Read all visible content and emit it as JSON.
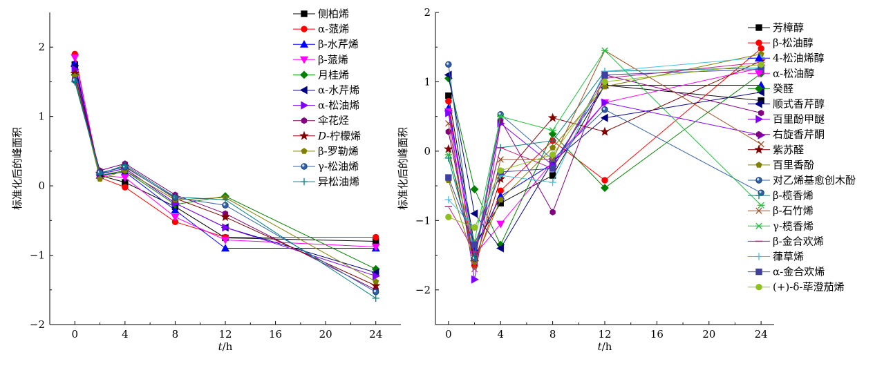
{
  "chart_data": [
    {
      "type": "line",
      "xlabel_var": "t",
      "xlabel_unit": "/h",
      "ylabel": "标准化后的峰面积",
      "xlim": [
        -2,
        26
      ],
      "ylim": [
        -2,
        2.5
      ],
      "xticks": [
        "0",
        "4",
        "8",
        "12",
        "16",
        "20",
        "24"
      ],
      "xtick_values": [
        0,
        4,
        8,
        12,
        16,
        20,
        24
      ],
      "yticks": [
        "−2",
        "−1",
        "0",
        "1",
        "2"
      ],
      "ytick_values": [
        -2,
        -1,
        0,
        1,
        2
      ],
      "x": [
        0,
        2,
        4,
        8,
        12,
        24
      ],
      "legend": "top-right",
      "series": [
        {
          "name": "侧柏烯",
          "color": "#000000",
          "marker": "square",
          "values": [
            1.75,
            0.15,
            0.05,
            -0.3,
            -0.75,
            -0.8
          ]
        },
        {
          "name": "α-蒎烯",
          "color": "#ff0000",
          "marker": "circle",
          "values": [
            1.9,
            0.12,
            -0.02,
            -0.52,
            -0.74,
            -0.74
          ]
        },
        {
          "name": "β-水芹烯",
          "color": "#0000ff",
          "marker": "triangle-up",
          "values": [
            1.77,
            0.15,
            0.2,
            -0.35,
            -0.9,
            -0.9
          ]
        },
        {
          "name": "β-蒎烯",
          "color": "#ff00ff",
          "marker": "triangle-down",
          "values": [
            1.85,
            0.15,
            0.12,
            -0.45,
            -0.78,
            -0.88
          ]
        },
        {
          "name": "月桂烯",
          "color": "#008000",
          "marker": "diamond",
          "values": [
            1.6,
            0.15,
            0.22,
            -0.27,
            -0.15,
            -1.2
          ]
        },
        {
          "name": "α-水芹烯",
          "color": "#000080",
          "marker": "triangle-left",
          "values": [
            1.72,
            0.17,
            0.25,
            -0.25,
            -0.6,
            -1.25
          ]
        },
        {
          "name": "α-松油烯",
          "color": "#8000ff",
          "marker": "triangle-right",
          "values": [
            1.68,
            0.17,
            0.25,
            -0.25,
            -0.6,
            -1.3
          ]
        },
        {
          "name": "伞花烃",
          "color": "#800080",
          "marker": "hexagon",
          "values": [
            1.55,
            0.22,
            0.32,
            -0.13,
            -0.4,
            -1.5
          ]
        },
        {
          "name": "D-柠檬烯",
          "italic_prefix": "D",
          "color": "#800000",
          "marker": "star",
          "values": [
            1.62,
            0.18,
            0.28,
            -0.18,
            -0.45,
            -1.44
          ]
        },
        {
          "name": "β-罗勒烯",
          "color": "#808000",
          "marker": "pentagon",
          "values": [
            1.58,
            0.1,
            0.22,
            -0.2,
            -0.17,
            -1.38
          ]
        },
        {
          "name": "γ-松油烯",
          "color": "#3060a8",
          "marker": "sphere",
          "values": [
            1.52,
            0.19,
            0.27,
            -0.17,
            -0.28,
            -1.53
          ]
        },
        {
          "name": "异松油烯",
          "color": "#008080",
          "marker": "plus",
          "values": [
            1.5,
            0.17,
            0.3,
            -0.16,
            -0.2,
            -1.62
          ]
        }
      ]
    },
    {
      "type": "line",
      "xlabel_var": "t",
      "xlabel_unit": "/h",
      "ylabel": "标准化后的峰面积",
      "xlim": [
        -1,
        25
      ],
      "ylim": [
        -2.5,
        2
      ],
      "xticks": [
        "0",
        "4",
        "8",
        "12",
        "16",
        "20",
        "24"
      ],
      "xtick_values": [
        0,
        4,
        8,
        12,
        16,
        20,
        24
      ],
      "yticks": [
        "−2",
        "−1",
        "0",
        "1",
        "2"
      ],
      "ytick_values": [
        -2,
        -1,
        0,
        1,
        2
      ],
      "x": [
        0,
        2,
        4,
        8,
        12,
        24
      ],
      "legend": "top-right",
      "series": [
        {
          "name": "芳樟醇",
          "color": "#000000",
          "marker": "square",
          "values": [
            0.8,
            -1.35,
            -0.75,
            -0.35,
            0.95,
            0.73
          ]
        },
        {
          "name": "β-松油醇",
          "color": "#ff0000",
          "marker": "circle",
          "values": [
            0.72,
            -1.65,
            -0.57,
            0.15,
            -0.42,
            1.48
          ]
        },
        {
          "name": "4-松油烯醇",
          "color": "#0000ff",
          "marker": "triangle-up",
          "values": [
            0.62,
            -1.4,
            -0.65,
            -0.18,
            0.95,
            0.95
          ]
        },
        {
          "name": "α-松油醇",
          "color": "#ff00ff",
          "marker": "triangle-down",
          "values": [
            0.57,
            -1.5,
            -1.05,
            -0.15,
            0.7,
            1.2
          ]
        },
        {
          "name": "癸醛",
          "color": "#008000",
          "marker": "diamond",
          "values": [
            1.05,
            -0.55,
            -1.35,
            0.25,
            -0.53,
            1.12
          ]
        },
        {
          "name": "顺式香芹醇",
          "color": "#000080",
          "marker": "triangle-left",
          "values": [
            1.1,
            -0.9,
            -1.4,
            -0.15,
            0.48,
            0.85
          ]
        },
        {
          "name": "百里酚甲醚",
          "color": "#8000ff",
          "marker": "triangle-right",
          "values": [
            0.55,
            -1.85,
            0.4,
            -0.2,
            0.7,
            0.23
          ]
        },
        {
          "name": "右旋香芹酮",
          "color": "#800080",
          "marker": "hexagon",
          "values": [
            0.28,
            -1.6,
            0.45,
            -0.88,
            1.1,
            0.55
          ]
        },
        {
          "name": "紫苏醛",
          "color": "#800000",
          "marker": "star",
          "values": [
            0.03,
            -1.6,
            -0.4,
            0.48,
            0.28,
            1.3
          ]
        },
        {
          "name": "百里香酚",
          "color": "#808000",
          "marker": "pentagon",
          "values": [
            -0.42,
            -1.6,
            -0.7,
            0.05,
            0.93,
            1.4
          ]
        },
        {
          "name": "对乙烯基愈创木酚",
          "color": "#3060a8",
          "marker": "sphere",
          "values": [
            1.25,
            -1.55,
            0.53,
            -0.12,
            0.6,
            -0.6
          ]
        },
        {
          "name": "β-榄香烯",
          "color": "#008080",
          "marker": "plus",
          "values": [
            -0.1,
            -1.5,
            0.05,
            0.15,
            1.15,
            1.2
          ]
        },
        {
          "name": "β-石竹烯",
          "color": "#a05020",
          "marker": "cross",
          "values": [
            0.4,
            -1.7,
            -0.12,
            -0.12,
            1.45,
            0.1
          ]
        },
        {
          "name": "γ-榄香烯",
          "color": "#20c040",
          "marker": "asterisk",
          "values": [
            -0.05,
            -1.3,
            0.5,
            0.3,
            1.45,
            -0.78
          ]
        },
        {
          "name": "β-金合欢烯",
          "color": "#c02080",
          "marker": "dash",
          "values": [
            -0.8,
            -1.45,
            0.05,
            -0.25,
            1.05,
            1.28
          ]
        },
        {
          "name": "葎草烯",
          "color": "#40c0e0",
          "marker": "plus",
          "values": [
            -0.7,
            -1.1,
            -0.35,
            -0.45,
            1.15,
            1.35
          ]
        },
        {
          "name": "α-金合欢烯",
          "color": "#4040a0",
          "marker": "square",
          "values": [
            -0.38,
            -1.35,
            -0.3,
            -0.25,
            1.1,
            1.18
          ]
        },
        {
          "name": "(+)-δ-荜澄茄烯",
          "color": "#90c020",
          "marker": "circle",
          "values": [
            -0.95,
            -1.1,
            -0.28,
            -0.05,
            1.0,
            1.25
          ]
        }
      ]
    }
  ]
}
